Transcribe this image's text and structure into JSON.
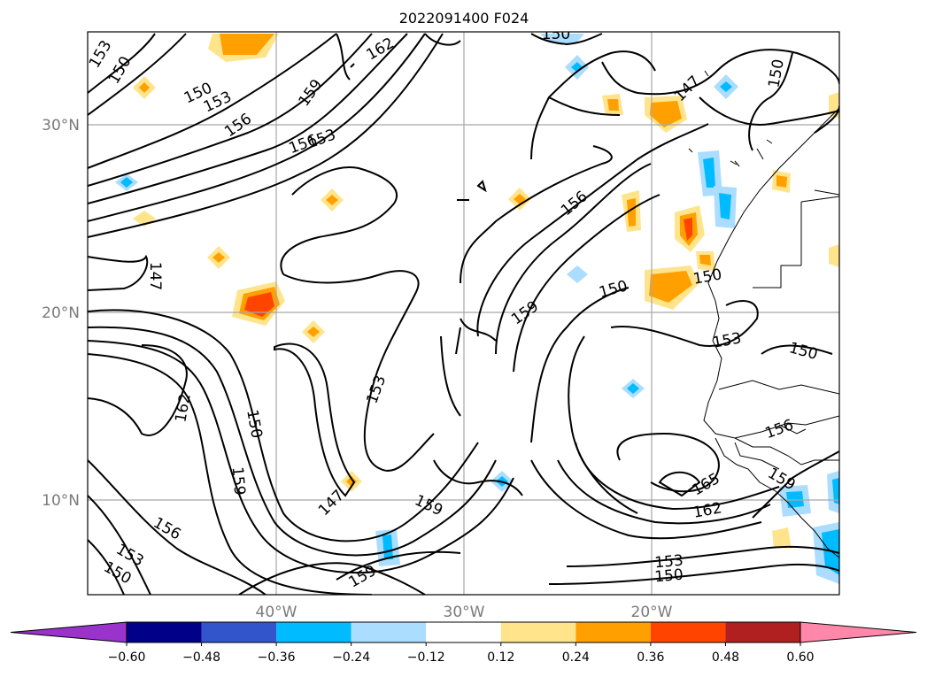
{
  "title": "2022091400 F024",
  "lat_labels": [
    "30°N",
    "20°N",
    "10°N"
  ],
  "lon_labels": [
    "40°W",
    "30°W",
    "20°W"
  ],
  "colorbar": {
    "ticks": [
      "−0.60",
      "−0.48",
      "−0.36",
      "−0.24",
      "−0.12",
      "0.12",
      "0.24",
      "0.36",
      "0.48",
      "0.60"
    ],
    "colors": [
      "#9933cc",
      "#000088",
      "#3355cc",
      "#00bbff",
      "#aaddff",
      "#ffffff",
      "#ffe48c",
      "#ffa000",
      "#ff4400",
      "#b02020",
      "#ff88aa"
    ]
  },
  "contour_labels": [
    "153",
    "150",
    "162",
    "150",
    "153",
    "156",
    "159",
    "156",
    "153",
    "150",
    "147",
    "156",
    "147",
    "150",
    "150",
    "159",
    "162",
    "150",
    "159",
    "153",
    "147",
    "159",
    "159",
    "156",
    "153",
    "150",
    "165",
    "162",
    "153",
    "150",
    "156",
    "159",
    "153",
    "150"
  ]
}
